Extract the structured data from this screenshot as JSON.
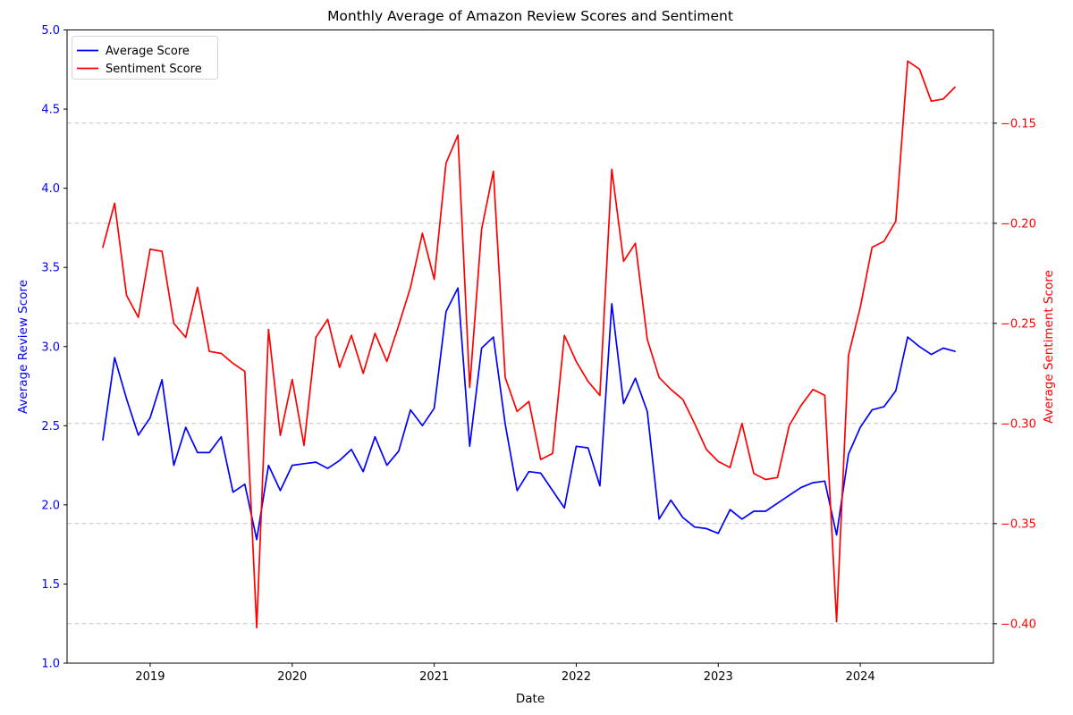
{
  "chart_data": {
    "type": "line",
    "title": "Monthly Average of Amazon Review Scores and Sentiment",
    "xlabel": "Date",
    "ylabel_left": "Average Review Score",
    "ylabel_right": "Average Sentiment Score",
    "grid": "horizontal-dashed",
    "legend_position": "upper-left",
    "colors": {
      "left_axis": "#0000ff",
      "right_axis": "#ff0000",
      "grid": "#b9b9b9",
      "spine": "#000000",
      "text": "#000000",
      "legend_border": "#d5d5d5"
    },
    "x_ticks": [
      {
        "label": "2019",
        "month_index": 4
      },
      {
        "label": "2020",
        "month_index": 16
      },
      {
        "label": "2021",
        "month_index": 28
      },
      {
        "label": "2022",
        "month_index": 40
      },
      {
        "label": "2023",
        "month_index": 52
      },
      {
        "label": "2024",
        "month_index": 64
      }
    ],
    "left_axis": {
      "min": 1.0,
      "max": 5.0,
      "ticks": [
        {
          "label": "1.0",
          "value": 1.0
        },
        {
          "label": "1.5",
          "value": 1.5
        },
        {
          "label": "2.0",
          "value": 2.0
        },
        {
          "label": "2.5",
          "value": 2.5
        },
        {
          "label": "3.0",
          "value": 3.0
        },
        {
          "label": "3.5",
          "value": 3.5
        },
        {
          "label": "4.0",
          "value": 4.0
        },
        {
          "label": "4.5",
          "value": 4.5
        },
        {
          "label": "5.0",
          "value": 5.0
        }
      ]
    },
    "right_axis": {
      "min": -0.42,
      "max": -0.103,
      "ticks": [
        {
          "label": "−0.40",
          "value": -0.4
        },
        {
          "label": "−0.35",
          "value": -0.35
        },
        {
          "label": "−0.30",
          "value": -0.3
        },
        {
          "label": "−0.25",
          "value": -0.25
        },
        {
          "label": "−0.20",
          "value": -0.2
        },
        {
          "label": "−0.15",
          "value": -0.15
        }
      ]
    },
    "months": [
      "2018-09",
      "2018-10",
      "2018-11",
      "2018-12",
      "2019-01",
      "2019-02",
      "2019-03",
      "2019-04",
      "2019-05",
      "2019-06",
      "2019-07",
      "2019-08",
      "2019-09",
      "2019-10",
      "2019-11",
      "2019-12",
      "2020-01",
      "2020-02",
      "2020-03",
      "2020-04",
      "2020-05",
      "2020-06",
      "2020-07",
      "2020-08",
      "2020-09",
      "2020-10",
      "2020-11",
      "2020-12",
      "2021-01",
      "2021-02",
      "2021-03",
      "2021-04",
      "2021-05",
      "2021-06",
      "2021-07",
      "2021-08",
      "2021-09",
      "2021-10",
      "2021-11",
      "2021-12",
      "2022-01",
      "2022-02",
      "2022-03",
      "2022-04",
      "2022-05",
      "2022-06",
      "2022-07",
      "2022-08",
      "2022-09",
      "2022-10",
      "2022-11",
      "2022-12",
      "2023-01",
      "2023-02",
      "2023-03",
      "2023-04",
      "2023-05",
      "2023-06",
      "2023-07",
      "2023-08",
      "2023-09",
      "2023-10",
      "2023-11",
      "2023-12",
      "2024-01",
      "2024-02",
      "2024-03",
      "2024-04",
      "2024-05",
      "2024-06",
      "2024-07",
      "2024-08",
      "2024-09"
    ],
    "series": [
      {
        "name": "Average Score",
        "axis": "left",
        "color": "#0000ff",
        "values": [
          2.41,
          2.93,
          2.67,
          2.44,
          2.55,
          2.79,
          2.25,
          2.49,
          2.33,
          2.33,
          2.43,
          2.08,
          2.13,
          1.78,
          2.25,
          2.09,
          2.25,
          2.26,
          2.27,
          2.23,
          2.28,
          2.35,
          2.21,
          2.43,
          2.25,
          2.34,
          2.6,
          2.5,
          2.61,
          3.22,
          3.37,
          2.37,
          2.99,
          3.06,
          2.51,
          2.09,
          2.21,
          2.2,
          2.09,
          1.98,
          2.37,
          2.36,
          2.12,
          3.27,
          2.64,
          2.8,
          2.59,
          1.91,
          2.03,
          1.92,
          1.86,
          1.85,
          1.82,
          1.97,
          1.91,
          1.96,
          1.96,
          2.01,
          2.06,
          2.11,
          2.14,
          2.15,
          1.81,
          2.32,
          2.49,
          2.6,
          2.62,
          2.72,
          3.06,
          3.0,
          2.95,
          2.99,
          2.97
        ]
      },
      {
        "name": "Sentiment Score",
        "axis": "right",
        "color": "#ff0000",
        "values": [
          -0.212,
          -0.19,
          -0.236,
          -0.247,
          -0.213,
          -0.214,
          -0.25,
          -0.257,
          -0.232,
          -0.264,
          -0.265,
          -0.27,
          -0.274,
          -0.402,
          -0.253,
          -0.306,
          -0.278,
          -0.311,
          -0.257,
          -0.248,
          -0.272,
          -0.256,
          -0.275,
          -0.255,
          -0.269,
          -0.251,
          -0.232,
          -0.205,
          -0.228,
          -0.17,
          -0.156,
          -0.282,
          -0.203,
          -0.174,
          -0.277,
          -0.294,
          -0.289,
          -0.318,
          -0.315,
          -0.256,
          -0.269,
          -0.279,
          -0.286,
          -0.173,
          -0.219,
          -0.21,
          -0.258,
          -0.277,
          -0.283,
          -0.288,
          -0.3,
          -0.313,
          -0.319,
          -0.322,
          -0.3,
          -0.325,
          -0.328,
          -0.327,
          -0.301,
          -0.291,
          -0.283,
          -0.286,
          -0.399,
          -0.266,
          -0.242,
          -0.212,
          -0.209,
          -0.199,
          -0.119,
          -0.123,
          -0.139,
          -0.138,
          -0.132
        ]
      }
    ]
  }
}
